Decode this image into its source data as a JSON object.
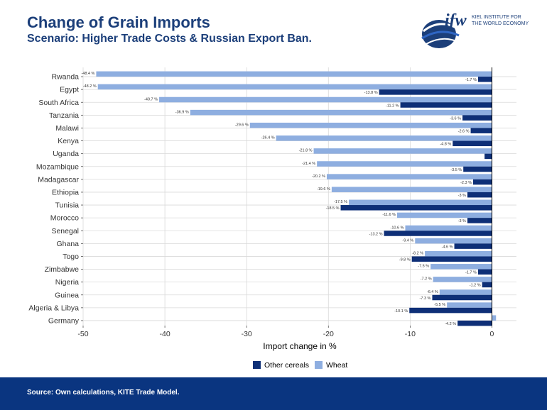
{
  "slide": {
    "title": "Change of Grain Imports",
    "subtitle": "Scenario: Higher Trade Costs & Russian Export Ban."
  },
  "logo": {
    "mark": "ifw",
    "line1": "KIEL INSTITUTE FOR",
    "line2": "THE WORLD ECONOMY",
    "colors": {
      "navy": "#1c3f7a",
      "blue": "#2f66c4"
    }
  },
  "footer": {
    "source": "Source: Own calculations, KITE Trade Model.",
    "color": "#0a3580"
  },
  "chart_data": {
    "type": "bar",
    "orientation": "horizontal",
    "categories": [
      "Rwanda",
      "Egypt",
      "South Africa",
      "Tanzania",
      "Malawi",
      "Kenya",
      "Uganda",
      "Mozambique",
      "Madagascar",
      "Ethiopia",
      "Tunisia",
      "Morocco",
      "Senegal",
      "Ghana",
      "Togo",
      "Zimbabwe",
      "Nigeria",
      "Guinea",
      "Algeria & Libya",
      "Germany"
    ],
    "series": [
      {
        "name": "Wheat",
        "color": "#8eaee0",
        "values": [
          -48.4,
          -48.2,
          -40.7,
          -36.9,
          -29.6,
          -26.4,
          -21.8,
          -21.4,
          -20.2,
          -19.6,
          -17.5,
          -11.6,
          -10.6,
          -9.4,
          -8.2,
          -7.5,
          -7.2,
          -6.4,
          -5.5,
          0.5
        ],
        "labels": [
          "-48.4 %",
          "-48.2 %",
          "-40.7 %",
          "-36.9 %",
          "-29.6 %",
          "-26.4 %",
          "-21.8 %",
          "-21.4 %",
          "-20.2 %",
          "-19.6 %",
          "-17.5 %",
          "-11.6 %",
          "-10.6 %",
          "-9.4 %",
          "-8.2 %",
          "-7.5 %",
          "-7.2 %",
          "-6.4 %",
          "-5.5 %",
          ""
        ]
      },
      {
        "name": "Other cereals",
        "color": "#0e2f77",
        "values": [
          -1.7,
          -13.8,
          -11.2,
          -3.6,
          -2.6,
          -4.8,
          -0.9,
          -3.5,
          -2.3,
          -3.0,
          -18.5,
          -3.0,
          -13.2,
          -4.6,
          -9.8,
          -1.7,
          -1.2,
          -7.3,
          -10.1,
          -4.2
        ],
        "labels": [
          "-1.7 %",
          "-13.8 %",
          "-11.2 %",
          "-3.6 %",
          "-2.6 %",
          "-4.8 %",
          "",
          "-3.5 %",
          "-2.3 %",
          "-3 %",
          "-18.5 %",
          "-3 %",
          "-13.2 %",
          "-4.6 %",
          "-9.8 %",
          "-1.7 %",
          "-1.2 %",
          "-7.3 %",
          "-10.1 %",
          "-4.2 %"
        ]
      }
    ],
    "xlabel": "Import change in %",
    "ylabel": "",
    "xlim": [
      -50,
      3
    ],
    "xticks": [
      -50,
      -40,
      -30,
      -20,
      -10,
      0
    ],
    "xtick_labels": [
      "-50",
      "-40",
      "-30",
      "-20",
      "-10",
      "0"
    ],
    "grid": true,
    "legend": {
      "placement": "bottom",
      "items": [
        {
          "name": "Other cereals",
          "color": "#0e2f77"
        },
        {
          "name": "Wheat",
          "color": "#8eaee0"
        }
      ]
    }
  }
}
